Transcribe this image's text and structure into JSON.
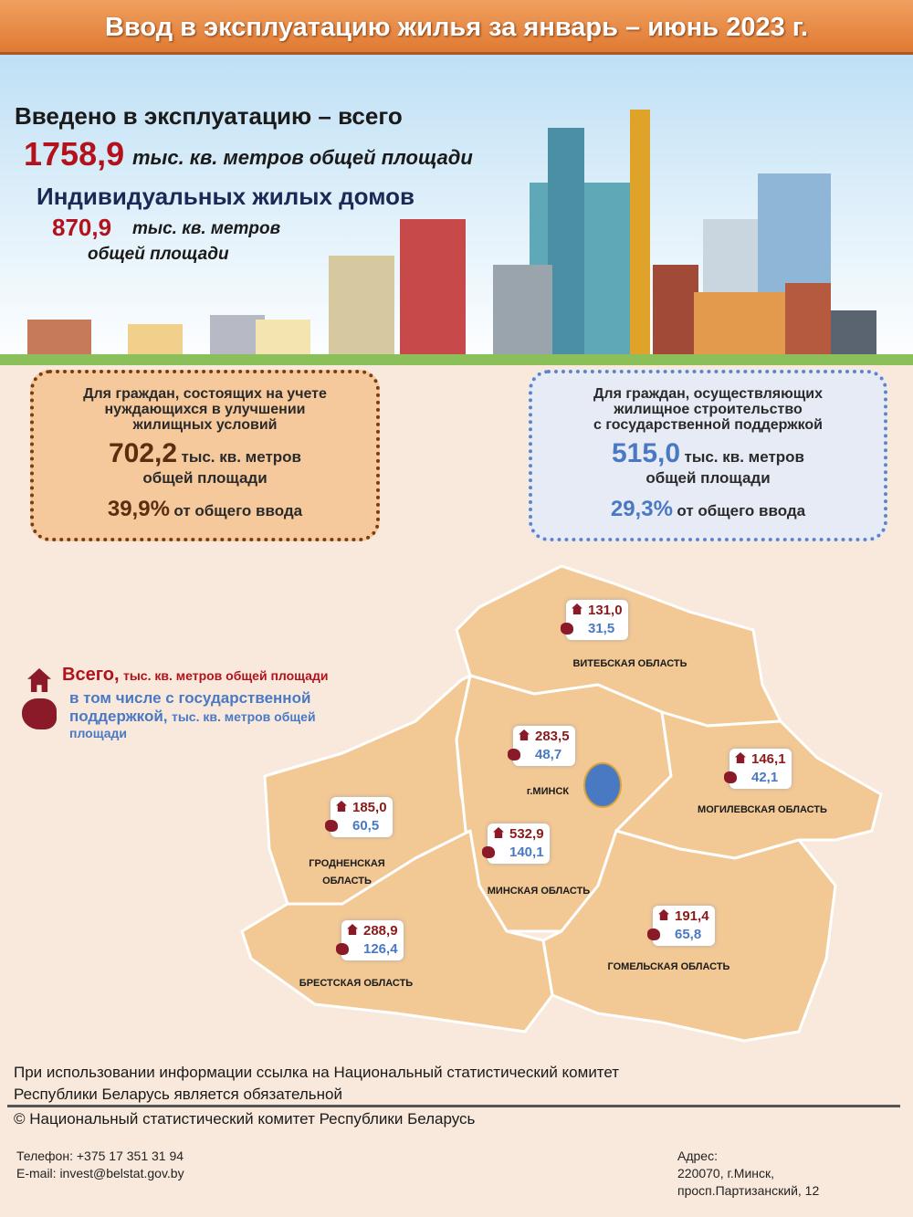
{
  "title": "Ввод в эксплуатацию жилья за январь – июнь 2023 г.",
  "hero": {
    "total_label": "Введено в эксплуатацию – всего",
    "total_value": "1758,9",
    "total_unit": "тыс. кв. метров общей площади",
    "individual_label": "Индивидуальных жилых домов",
    "individual_value": "870,9",
    "individual_unit_1": "тыс. кв. метров",
    "individual_unit_2": "общей площади"
  },
  "box_left": {
    "heading": [
      "Для граждан, состоящих на учете",
      "нуждающихся в  улучшении",
      "жилищных условий"
    ],
    "value": "702,2",
    "unit_1": "тыс. кв. метров",
    "unit_2": "общей площади",
    "percent": "39,9%",
    "percent_label": "от общего ввода",
    "color": "#5a2e0e"
  },
  "box_right": {
    "heading": [
      "Для граждан, осуществляющих",
      "жилищное строительство",
      "с государственной поддержкой"
    ],
    "value": "515,0",
    "unit_1": "тыс. кв. метров",
    "unit_2": "общей площади",
    "percent": "29,3%",
    "percent_label": "от общего ввода",
    "color": "#4a79c4"
  },
  "legend": {
    "total_bold": "Всего,",
    "total_rest": "тыс. кв. метров общей площади",
    "state_bold_1": "в том числе с государственной",
    "state_bold_2": "поддержкой,",
    "state_rest": "тыс. кв. метров общей",
    "state_rest_2": "площади",
    "total_icon": "house-icon",
    "state_icon": "belarus-map-icon"
  },
  "regions": [
    {
      "name": "ВИТЕБСКАЯ ОБЛАСТЬ",
      "total": "131,0",
      "state": "31,5"
    },
    {
      "name": "г.МИНСК",
      "total": "283,5",
      "state": "48,7"
    },
    {
      "name": "МОГИЛЕВСКАЯ  ОБЛАСТЬ",
      "total": "146,1",
      "state": "42,1"
    },
    {
      "name": "ГРОДНЕНСКАЯ ОБЛАСТЬ",
      "total": "185,0",
      "state": "60,5"
    },
    {
      "name": "МИНСКАЯ ОБЛАСТЬ",
      "total": "532,9",
      "state": "140,1"
    },
    {
      "name": "БРЕСТСКАЯ ОБЛАСТЬ",
      "total": "288,9",
      "state": "126,4"
    },
    {
      "name": "ГОМЕЛЬСКАЯ ОБЛАСТЬ",
      "total": "191,4",
      "state": "65,8"
    }
  ],
  "footer": {
    "notice_1": "При использовании информации ссылка на Национальный статистический  комитет",
    "notice_2": "Республики Беларусь является обязательной",
    "copyright": "© Национальный статистический комитет Республики Беларусь",
    "phone": "Телефон: +375 17 351 31 94",
    "email": "E-mail: invest@belstat.gov.by",
    "address_label": "Адрес:",
    "address_1": "220070,  г.Минск,",
    "address_2": "просп.Партизанский, 12"
  }
}
